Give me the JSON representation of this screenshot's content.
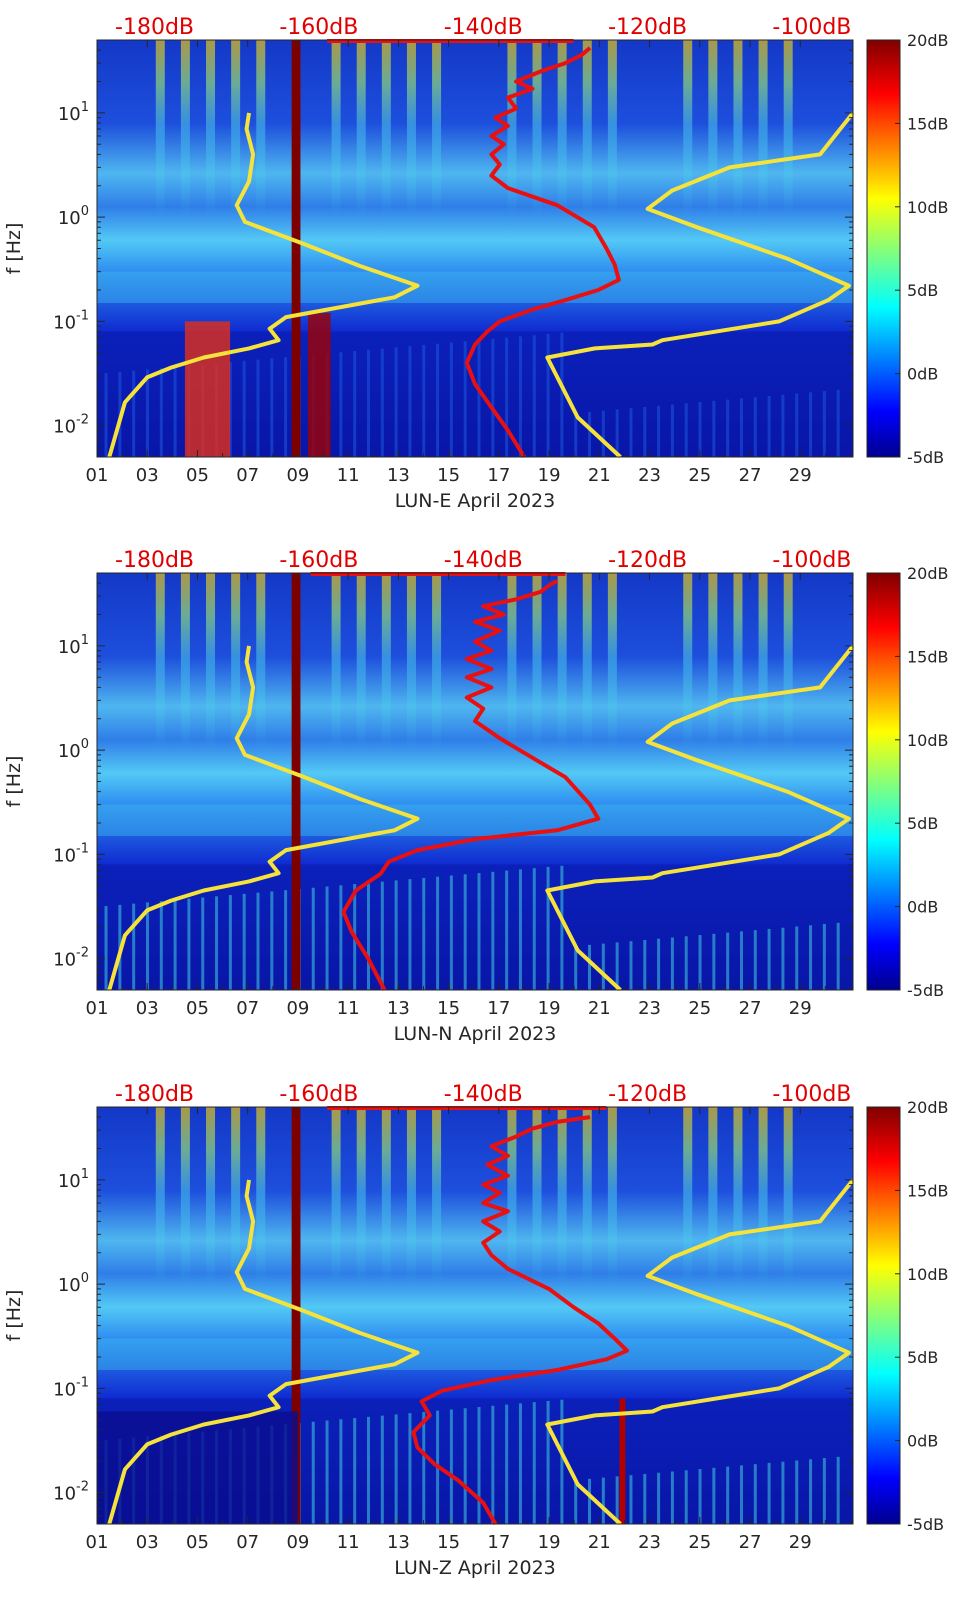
{
  "chart_data": [
    {
      "type": "heatmap",
      "station": "LUN-E",
      "xlabel": "LUN-E April 2023",
      "ylabel": "f [Hz]",
      "x_tick_labels": [
        "01",
        "03",
        "05",
        "07",
        "09",
        "11",
        "13",
        "15",
        "17",
        "19",
        "21",
        "23",
        "25",
        "27",
        "29"
      ],
      "x_tick_days": [
        1,
        3,
        5,
        7,
        9,
        11,
        13,
        15,
        17,
        19,
        21,
        23,
        25,
        27,
        29
      ],
      "x_range_days": [
        1,
        31.1
      ],
      "y_scale": "log",
      "ylim_hz": [
        0.005,
        50
      ],
      "y_ticks": [
        {
          "value": 0.01,
          "base": "10",
          "exp": "-2"
        },
        {
          "value": 0.1,
          "base": "10",
          "exp": "-1"
        },
        {
          "value": 1,
          "base": "10",
          "exp": "0"
        },
        {
          "value": 10,
          "base": "10",
          "exp": "1"
        }
      ],
      "top_axis_labels": [
        "-180dB",
        "-160dB",
        "-140dB",
        "-120dB",
        "-100dB"
      ],
      "top_axis_db": [
        -180,
        -160,
        -140,
        -120,
        -100
      ],
      "top_axis_range_db": [
        -187,
        -95
      ],
      "colorbar_labels": [
        "20dB",
        "15dB",
        "10dB",
        "5dB",
        "0dB",
        "-5dB"
      ],
      "colorbar_range_db": [
        -5,
        20
      ],
      "colormap": "jet",
      "noise_models": {
        "color": "#f5e23a",
        "nlnm": [
          [
            -185.5,
            0.005
          ],
          [
            -183.6,
            0.0167
          ],
          [
            -180.9,
            0.029
          ],
          [
            -178,
            0.036
          ],
          [
            -174,
            0.045
          ],
          [
            -168.5,
            0.055
          ],
          [
            -164.9,
            0.066
          ],
          [
            -166,
            0.085
          ],
          [
            -164,
            0.11
          ],
          [
            -150.8,
            0.17
          ],
          [
            -148,
            0.22
          ],
          [
            -155,
            0.34
          ],
          [
            -162,
            0.56
          ],
          [
            -169,
            0.9
          ],
          [
            -170,
            1.3
          ],
          [
            -168.5,
            2.2
          ],
          [
            -168,
            4
          ],
          [
            -168.8,
            7
          ],
          [
            -168.5,
            10
          ]
        ],
        "nhnm": [
          [
            -123.3,
            0.005
          ],
          [
            -128.5,
            0.012
          ],
          [
            -132.2,
            0.045
          ],
          [
            -126.4,
            0.055
          ],
          [
            -119.4,
            0.06
          ],
          [
            -118.2,
            0.066
          ],
          [
            -104,
            0.1
          ],
          [
            -98,
            0.16
          ],
          [
            -95.5,
            0.22
          ],
          [
            -103,
            0.4
          ],
          [
            -114,
            0.8
          ],
          [
            -120,
            1.2
          ],
          [
            -117,
            1.8
          ],
          [
            -110,
            3
          ],
          [
            -99,
            4
          ],
          [
            -95,
            10
          ]
        ]
      },
      "median_psd": {
        "color": "#e81010",
        "points": [
          [
            -135,
            0.005
          ],
          [
            -137,
            0.009
          ],
          [
            -139,
            0.015
          ],
          [
            -141,
            0.025
          ],
          [
            -142,
            0.04
          ],
          [
            -141,
            0.06
          ],
          [
            -139.5,
            0.08
          ],
          [
            -138,
            0.1
          ],
          [
            -134,
            0.13
          ],
          [
            -130,
            0.16
          ],
          [
            -126,
            0.2
          ],
          [
            -123.5,
            0.25
          ],
          [
            -124,
            0.35
          ],
          [
            -125,
            0.5
          ],
          [
            -126.5,
            0.8
          ],
          [
            -131,
            1.3
          ],
          [
            -137,
            1.9
          ],
          [
            -139,
            2.5
          ],
          [
            -138,
            3.2
          ],
          [
            -139,
            4
          ],
          [
            -137.5,
            5
          ],
          [
            -139,
            6
          ],
          [
            -137,
            7.5
          ],
          [
            -138.5,
            9
          ],
          [
            -136,
            11
          ],
          [
            -137,
            14
          ],
          [
            -134,
            17
          ],
          [
            -136,
            20
          ],
          [
            -133,
            25
          ],
          [
            -130,
            30
          ],
          [
            -128,
            36
          ],
          [
            -127,
            42
          ]
        ],
        "top_segment_db": [
          -159,
          -129
        ]
      }
    },
    {
      "type": "heatmap",
      "station": "LUN-N",
      "xlabel": "LUN-N April 2023",
      "ylabel": "f [Hz]",
      "x_tick_labels": [
        "01",
        "03",
        "05",
        "07",
        "09",
        "11",
        "13",
        "15",
        "17",
        "19",
        "21",
        "23",
        "25",
        "27",
        "29"
      ],
      "x_tick_days": [
        1,
        3,
        5,
        7,
        9,
        11,
        13,
        15,
        17,
        19,
        21,
        23,
        25,
        27,
        29
      ],
      "x_range_days": [
        1,
        31.1
      ],
      "y_scale": "log",
      "ylim_hz": [
        0.005,
        50
      ],
      "y_ticks": [
        {
          "value": 0.01,
          "base": "10",
          "exp": "-2"
        },
        {
          "value": 0.1,
          "base": "10",
          "exp": "-1"
        },
        {
          "value": 1,
          "base": "10",
          "exp": "0"
        },
        {
          "value": 10,
          "base": "10",
          "exp": "1"
        }
      ],
      "top_axis_labels": [
        "-180dB",
        "-160dB",
        "-140dB",
        "-120dB",
        "-100dB"
      ],
      "top_axis_db": [
        -180,
        -160,
        -140,
        -120,
        -100
      ],
      "top_axis_range_db": [
        -187,
        -95
      ],
      "colorbar_labels": [
        "20dB",
        "15dB",
        "10dB",
        "5dB",
        "0dB",
        "-5dB"
      ],
      "colorbar_range_db": [
        -5,
        20
      ],
      "colormap": "jet",
      "noise_models": {
        "color": "#f5e23a",
        "nlnm": [
          [
            -185.5,
            0.005
          ],
          [
            -183.6,
            0.0167
          ],
          [
            -180.9,
            0.029
          ],
          [
            -178,
            0.036
          ],
          [
            -174,
            0.045
          ],
          [
            -168.5,
            0.055
          ],
          [
            -164.9,
            0.066
          ],
          [
            -166,
            0.085
          ],
          [
            -164,
            0.11
          ],
          [
            -150.8,
            0.17
          ],
          [
            -148,
            0.22
          ],
          [
            -155,
            0.34
          ],
          [
            -162,
            0.56
          ],
          [
            -169,
            0.9
          ],
          [
            -170,
            1.3
          ],
          [
            -168.5,
            2.2
          ],
          [
            -168,
            4
          ],
          [
            -168.8,
            7
          ],
          [
            -168.5,
            10
          ]
        ],
        "nhnm": [
          [
            -123.3,
            0.005
          ],
          [
            -128.5,
            0.012
          ],
          [
            -132.2,
            0.045
          ],
          [
            -126.4,
            0.055
          ],
          [
            -119.4,
            0.06
          ],
          [
            -118.2,
            0.066
          ],
          [
            -104,
            0.1
          ],
          [
            -98,
            0.16
          ],
          [
            -95.5,
            0.22
          ],
          [
            -103,
            0.4
          ],
          [
            -114,
            0.8
          ],
          [
            -120,
            1.2
          ],
          [
            -117,
            1.8
          ],
          [
            -110,
            3
          ],
          [
            -99,
            4
          ],
          [
            -95,
            10
          ]
        ]
      },
      "median_psd": {
        "color": "#e81010",
        "points": [
          [
            -152,
            0.005
          ],
          [
            -154,
            0.01
          ],
          [
            -156,
            0.018
          ],
          [
            -157,
            0.028
          ],
          [
            -155.5,
            0.045
          ],
          [
            -152.5,
            0.065
          ],
          [
            -151.5,
            0.085
          ],
          [
            -148,
            0.11
          ],
          [
            -141,
            0.14
          ],
          [
            -131,
            0.17
          ],
          [
            -126,
            0.22
          ],
          [
            -127,
            0.3
          ],
          [
            -129,
            0.45
          ],
          [
            -130,
            0.55
          ],
          [
            -133.5,
            0.8
          ],
          [
            -138,
            1.3
          ],
          [
            -141,
            1.9
          ],
          [
            -140,
            2.5
          ],
          [
            -142,
            3.2
          ],
          [
            -139,
            4
          ],
          [
            -142,
            5
          ],
          [
            -139,
            6
          ],
          [
            -142,
            7.5
          ],
          [
            -139,
            9
          ],
          [
            -141,
            11
          ],
          [
            -138,
            14
          ],
          [
            -141,
            17
          ],
          [
            -137.5,
            20
          ],
          [
            -140,
            24
          ],
          [
            -136,
            28
          ],
          [
            -133,
            33
          ],
          [
            -132,
            38
          ],
          [
            -131,
            42
          ]
        ],
        "top_segment_db": [
          -161,
          -130
        ]
      }
    },
    {
      "type": "heatmap",
      "station": "LUN-Z",
      "xlabel": "LUN-Z April 2023",
      "ylabel": "f [Hz]",
      "x_tick_labels": [
        "01",
        "03",
        "05",
        "07",
        "09",
        "11",
        "13",
        "15",
        "17",
        "19",
        "21",
        "23",
        "25",
        "27",
        "29"
      ],
      "x_tick_days": [
        1,
        3,
        5,
        7,
        9,
        11,
        13,
        15,
        17,
        19,
        21,
        23,
        25,
        27,
        29
      ],
      "x_range_days": [
        1,
        31.1
      ],
      "y_scale": "log",
      "ylim_hz": [
        0.005,
        50
      ],
      "y_ticks": [
        {
          "value": 0.01,
          "base": "10",
          "exp": "-2"
        },
        {
          "value": 0.1,
          "base": "10",
          "exp": "-1"
        },
        {
          "value": 1,
          "base": "10",
          "exp": "0"
        },
        {
          "value": 10,
          "base": "10",
          "exp": "1"
        }
      ],
      "top_axis_labels": [
        "-180dB",
        "-160dB",
        "-140dB",
        "-120dB",
        "-100dB"
      ],
      "top_axis_db": [
        -180,
        -160,
        -140,
        -120,
        -100
      ],
      "top_axis_range_db": [
        -187,
        -95
      ],
      "colorbar_labels": [
        "20dB",
        "15dB",
        "10dB",
        "5dB",
        "0dB",
        "-5dB"
      ],
      "colorbar_range_db": [
        -5,
        20
      ],
      "colormap": "jet",
      "noise_models": {
        "color": "#f5e23a",
        "nlnm": [
          [
            -185.5,
            0.005
          ],
          [
            -183.6,
            0.0167
          ],
          [
            -180.9,
            0.029
          ],
          [
            -178,
            0.036
          ],
          [
            -174,
            0.045
          ],
          [
            -168.5,
            0.055
          ],
          [
            -164.9,
            0.066
          ],
          [
            -166,
            0.085
          ],
          [
            -164,
            0.11
          ],
          [
            -150.8,
            0.17
          ],
          [
            -148,
            0.22
          ],
          [
            -155,
            0.34
          ],
          [
            -162,
            0.56
          ],
          [
            -169,
            0.9
          ],
          [
            -170,
            1.3
          ],
          [
            -168.5,
            2.2
          ],
          [
            -168,
            4
          ],
          [
            -168.8,
            7
          ],
          [
            -168.5,
            10
          ]
        ],
        "nhnm": [
          [
            -123.3,
            0.005
          ],
          [
            -128.5,
            0.012
          ],
          [
            -132.2,
            0.045
          ],
          [
            -126.4,
            0.055
          ],
          [
            -119.4,
            0.06
          ],
          [
            -118.2,
            0.066
          ],
          [
            -104,
            0.1
          ],
          [
            -98,
            0.16
          ],
          [
            -95.5,
            0.22
          ],
          [
            -103,
            0.4
          ],
          [
            -114,
            0.8
          ],
          [
            -120,
            1.2
          ],
          [
            -117,
            1.8
          ],
          [
            -110,
            3
          ],
          [
            -99,
            4
          ],
          [
            -95,
            10
          ]
        ]
      },
      "median_psd": {
        "color": "#e81010",
        "points": [
          [
            -138.5,
            0.005
          ],
          [
            -140,
            0.008
          ],
          [
            -143,
            0.013
          ],
          [
            -146,
            0.019
          ],
          [
            -148,
            0.027
          ],
          [
            -148.5,
            0.038
          ],
          [
            -146.5,
            0.055
          ],
          [
            -147.5,
            0.075
          ],
          [
            -145,
            0.095
          ],
          [
            -139,
            0.12
          ],
          [
            -131,
            0.15
          ],
          [
            -125,
            0.19
          ],
          [
            -122.5,
            0.23
          ],
          [
            -124,
            0.3
          ],
          [
            -126,
            0.42
          ],
          [
            -129,
            0.6
          ],
          [
            -132,
            0.9
          ],
          [
            -137,
            1.4
          ],
          [
            -139,
            1.9
          ],
          [
            -140,
            2.5
          ],
          [
            -138,
            3.2
          ],
          [
            -140,
            4
          ],
          [
            -137,
            5
          ],
          [
            -140,
            6
          ],
          [
            -138,
            7.5
          ],
          [
            -140,
            9
          ],
          [
            -137,
            11
          ],
          [
            -139.5,
            14
          ],
          [
            -137,
            17
          ],
          [
            -139,
            21
          ],
          [
            -136,
            26
          ],
          [
            -134,
            31
          ],
          [
            -131,
            36
          ],
          [
            -127,
            40
          ]
        ],
        "top_segment_db": [
          -159,
          -125
        ]
      }
    }
  ]
}
